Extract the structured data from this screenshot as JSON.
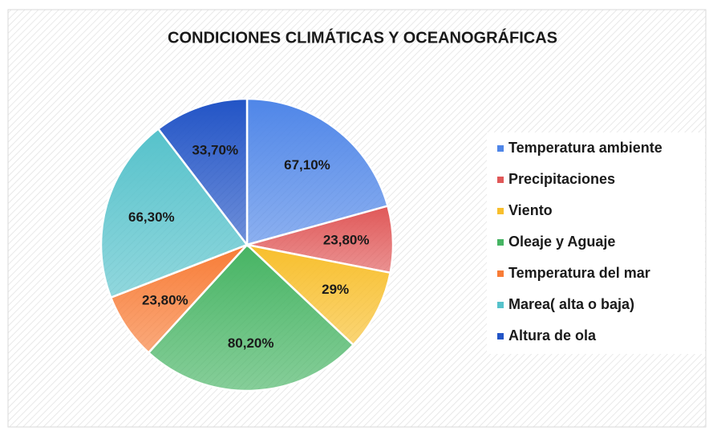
{
  "chart_data": {
    "type": "pie",
    "title": "CONDICIONES  CLIMÁTICAS Y OCEANOGRÁFICAS",
    "categories": [
      "Temperatura ambiente",
      "Precipitaciones",
      "Viento",
      "Oleaje y Aguaje",
      "Temperatura del mar",
      "Marea( alta o baja)",
      "Altura de ola"
    ],
    "values": [
      67.1,
      23.8,
      29,
      80.2,
      23.8,
      66.3,
      33.7
    ],
    "value_labels": [
      "67,10%",
      "23,80%",
      "29%",
      "80,20%",
      "23,80%",
      "66,30%",
      "33,70%"
    ],
    "colors": [
      "#4f86e8",
      "#e05858",
      "#f8bf2c",
      "#46b463",
      "#f87c36",
      "#56c2cb",
      "#2254c6"
    ],
    "legend": "right"
  }
}
